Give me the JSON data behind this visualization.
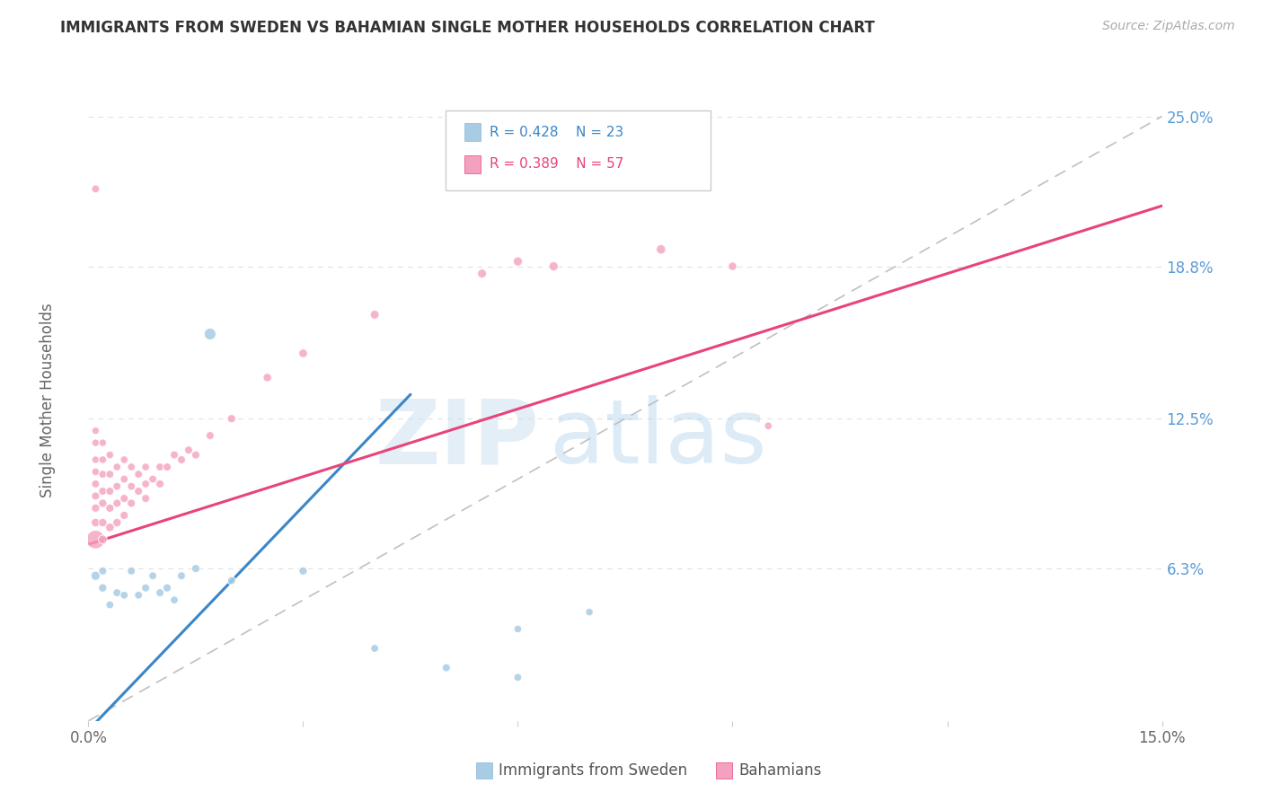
{
  "title": "IMMIGRANTS FROM SWEDEN VS BAHAMIAN SINGLE MOTHER HOUSEHOLDS CORRELATION CHART",
  "source": "Source: ZipAtlas.com",
  "ylabel": "Single Mother Households",
  "xlim": [
    0.0,
    0.15
  ],
  "ylim": [
    0.0,
    0.265
  ],
  "xtick_positions": [
    0.0,
    0.03,
    0.06,
    0.09,
    0.12,
    0.15
  ],
  "xticklabels": [
    "0.0%",
    "",
    "",
    "",
    "",
    "15.0%"
  ],
  "ytick_positions": [
    0.0,
    0.063,
    0.125,
    0.188,
    0.25
  ],
  "yticklabels": [
    "",
    "6.3%",
    "12.5%",
    "18.8%",
    "25.0%"
  ],
  "legend_blue_r": "R = 0.428",
  "legend_blue_n": "N = 23",
  "legend_pink_r": "R = 0.389",
  "legend_pink_n": "N = 57",
  "legend_blue_label": "Immigrants from Sweden",
  "legend_pink_label": "Bahamians",
  "watermark_zip": "ZIP",
  "watermark_atlas": "atlas",
  "blue_color": "#a8cce4",
  "pink_color": "#f4a0c0",
  "blue_line_color": "#3a86c8",
  "pink_line_color": "#e8447a",
  "diag_line_color": "#c0c0c0",
  "title_color": "#333333",
  "source_color": "#aaaaaa",
  "blue_scatter_x": [
    0.001,
    0.002,
    0.002,
    0.003,
    0.004,
    0.005,
    0.006,
    0.007,
    0.008,
    0.009,
    0.01,
    0.011,
    0.012,
    0.013,
    0.015,
    0.017,
    0.02,
    0.03,
    0.04,
    0.05,
    0.06,
    0.06,
    0.07
  ],
  "blue_scatter_y": [
    0.06,
    0.055,
    0.062,
    0.048,
    0.053,
    0.052,
    0.062,
    0.052,
    0.055,
    0.06,
    0.053,
    0.055,
    0.05,
    0.06,
    0.063,
    0.16,
    0.058,
    0.062,
    0.03,
    0.022,
    0.038,
    0.018,
    0.045
  ],
  "blue_scatter_sizes": [
    55,
    45,
    42,
    40,
    42,
    40,
    42,
    40,
    42,
    40,
    42,
    44,
    40,
    42,
    44,
    90,
    42,
    44,
    40,
    42,
    38,
    40,
    38
  ],
  "pink_scatter_x": [
    0.001,
    0.001,
    0.001,
    0.001,
    0.001,
    0.001,
    0.001,
    0.001,
    0.001,
    0.001,
    0.002,
    0.002,
    0.002,
    0.002,
    0.002,
    0.002,
    0.002,
    0.003,
    0.003,
    0.003,
    0.003,
    0.003,
    0.004,
    0.004,
    0.004,
    0.004,
    0.005,
    0.005,
    0.005,
    0.005,
    0.006,
    0.006,
    0.006,
    0.007,
    0.007,
    0.008,
    0.008,
    0.008,
    0.009,
    0.01,
    0.01,
    0.011,
    0.012,
    0.013,
    0.014,
    0.015,
    0.017,
    0.02,
    0.025,
    0.03,
    0.04,
    0.055,
    0.06,
    0.065,
    0.08,
    0.09,
    0.095
  ],
  "pink_scatter_y": [
    0.075,
    0.082,
    0.088,
    0.093,
    0.098,
    0.103,
    0.108,
    0.115,
    0.12,
    0.22,
    0.075,
    0.082,
    0.09,
    0.095,
    0.102,
    0.108,
    0.115,
    0.08,
    0.088,
    0.095,
    0.102,
    0.11,
    0.082,
    0.09,
    0.097,
    0.105,
    0.085,
    0.092,
    0.1,
    0.108,
    0.09,
    0.097,
    0.105,
    0.095,
    0.102,
    0.092,
    0.098,
    0.105,
    0.1,
    0.098,
    0.105,
    0.105,
    0.11,
    0.108,
    0.112,
    0.11,
    0.118,
    0.125,
    0.142,
    0.152,
    0.168,
    0.185,
    0.19,
    0.188,
    0.195,
    0.188,
    0.122
  ],
  "pink_scatter_sizes": [
    220,
    48,
    44,
    42,
    40,
    38,
    36,
    36,
    35,
    40,
    50,
    46,
    44,
    42,
    40,
    38,
    36,
    48,
    44,
    42,
    40,
    38,
    46,
    42,
    40,
    38,
    44,
    42,
    40,
    38,
    42,
    40,
    38,
    42,
    40,
    42,
    40,
    38,
    40,
    42,
    40,
    42,
    42,
    42,
    42,
    42,
    42,
    44,
    46,
    48,
    50,
    52,
    54,
    54,
    56,
    46,
    38
  ],
  "blue_line_x": [
    -0.002,
    0.045
  ],
  "blue_line_y": [
    -0.01,
    0.135
  ],
  "pink_line_x": [
    0.0,
    0.15
  ],
  "pink_line_y": [
    0.073,
    0.213
  ],
  "diag_line_x": [
    0.0,
    0.15
  ],
  "diag_line_y": [
    0.0,
    0.25
  ]
}
